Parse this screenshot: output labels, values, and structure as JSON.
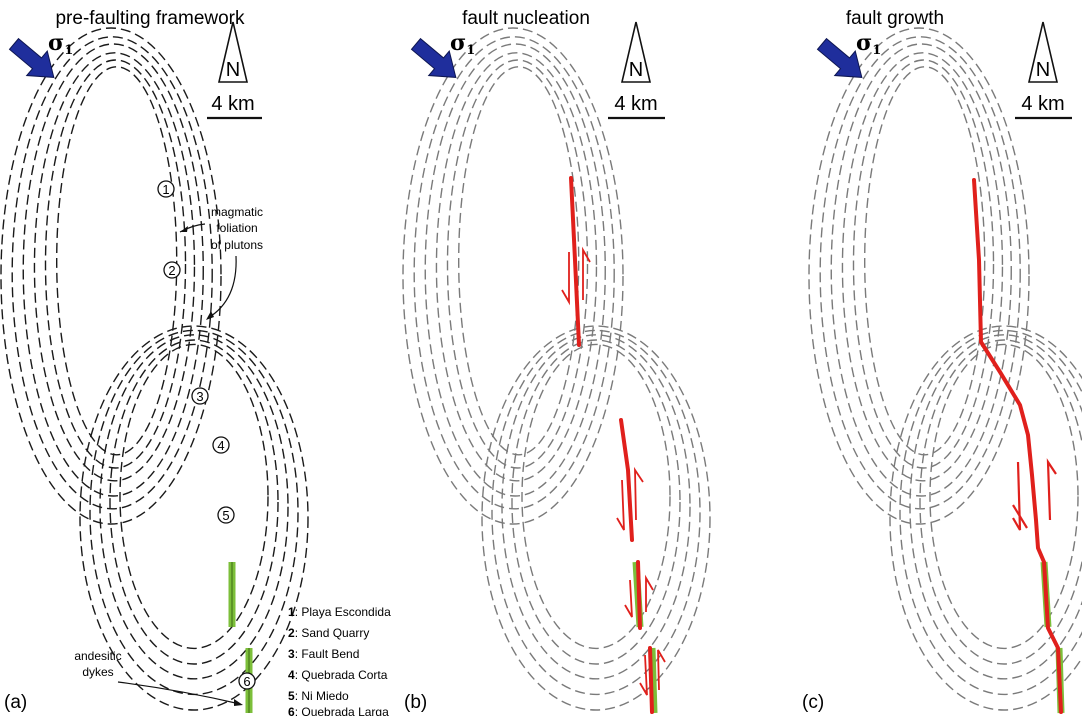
{
  "panels": [
    {
      "title": "pre-faulting framework",
      "letter": "(a)"
    },
    {
      "title": "fault nucleation",
      "letter": "(b)"
    },
    {
      "title": "fault growth",
      "letter": "(c)"
    }
  ],
  "stress": {
    "symbol": "σ",
    "subscript": "1"
  },
  "north": {
    "letter": "N",
    "scale_label": "4 km"
  },
  "site_markers": [
    "1",
    "2",
    "3",
    "4",
    "5",
    "6"
  ],
  "annotations": {
    "foliation": [
      "magmatic",
      "foliation",
      "of plutons"
    ],
    "dykes": [
      "andesitic",
      "dykes"
    ]
  },
  "legend": [
    {
      "num": "1",
      "name": ": Playa Escondida"
    },
    {
      "num": "2",
      "name": ": Sand Quarry"
    },
    {
      "num": "3",
      "name": ": Fault Bend"
    },
    {
      "num": "4",
      "name": ": Quebrada Corta"
    },
    {
      "num": "5",
      "name": ": Ni Miedo"
    },
    {
      "num": "6",
      "name": ": Quebrada Larga"
    }
  ],
  "colors": {
    "foliation_dark": "#1a1a1a",
    "foliation_gray": "#7a7a7a",
    "fault": "#e0201c",
    "dyke": "#7cbf3a",
    "arrow": "#1f2e9c"
  }
}
